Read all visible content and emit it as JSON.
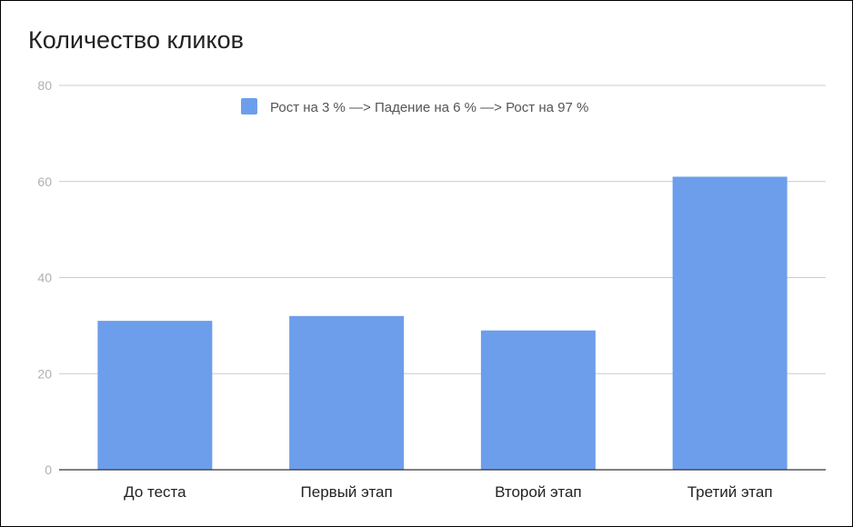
{
  "colors": {
    "bar": "#6d9eeb",
    "grid": "#cccccc",
    "axis": "#333333"
  },
  "chart_data": {
    "type": "bar",
    "title": "Количество кликов",
    "categories": [
      "До теста",
      "Первый этап",
      "Второй этап",
      "Третий этап"
    ],
    "series": [
      {
        "name": "Рост на 3 % —> Падение на 6 % —> Рост на 97 %",
        "values": [
          31,
          32,
          29,
          61
        ]
      }
    ],
    "ylim": [
      0,
      80
    ],
    "yticks": [
      "0",
      "20",
      "40",
      "60",
      "80"
    ],
    "grid": true,
    "legend_position": "top-center"
  }
}
